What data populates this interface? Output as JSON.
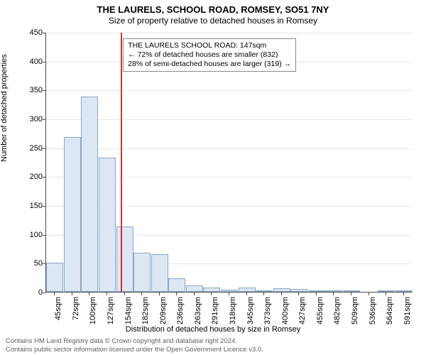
{
  "title": "THE LAURELS, SCHOOL ROAD, ROMSEY, SO51 7NY",
  "subtitle": "Size of property relative to detached houses in Romsey",
  "y_axis_label": "Number of detached properties",
  "x_axis_label": "Distribution of detached houses by size in Romsey",
  "chart": {
    "type": "histogram",
    "y_max": 450,
    "y_tick_step": 50,
    "y_ticks": [
      0,
      50,
      100,
      150,
      200,
      250,
      300,
      350,
      400,
      450
    ],
    "x_labels": [
      "45sqm",
      "72sqm",
      "100sqm",
      "127sqm",
      "154sqm",
      "182sqm",
      "209sqm",
      "236sqm",
      "263sqm",
      "291sqm",
      "318sqm",
      "345sqm",
      "373sqm",
      "400sqm",
      "427sqm",
      "455sqm",
      "482sqm",
      "509sqm",
      "536sqm",
      "564sqm",
      "591sqm"
    ],
    "bar_values": [
      50,
      268,
      338,
      232,
      113,
      68,
      65,
      23,
      11,
      7,
      4,
      7,
      3,
      6,
      5,
      2,
      3,
      2,
      0,
      2,
      2
    ],
    "bar_fill": "#dce7f3",
    "bar_stroke": "#8aa8c8",
    "grid_color": "#e8e8e8",
    "axis_color": "#4a4a4a",
    "background_color": "#ffffff",
    "marker_position_index": 3.78,
    "marker_color": "#d93030"
  },
  "annotation": {
    "line1": "THE LAURELS SCHOOL ROAD: 147sqm",
    "line2": "← 72% of detached houses are smaller (832)",
    "line3": "28% of semi-detached houses are larger (319) →"
  },
  "footer": {
    "line1": "Contains HM Land Registry data © Crown copyright and database right 2024.",
    "line2": "Contains public sector information licensed under the Open Government Licence v3.0."
  }
}
